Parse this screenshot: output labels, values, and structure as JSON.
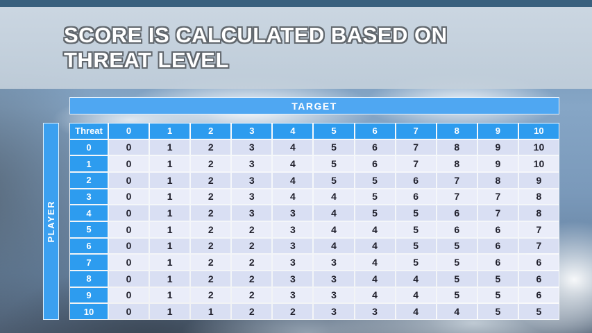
{
  "title": {
    "line1": "SCORE IS CALCULATED BASED ON",
    "line2": "THREAT LEVEL"
  },
  "chart_data": {
    "type": "table",
    "corner_label": "Threat",
    "column_axis_label": "TARGET",
    "row_axis_label": "PLAYER",
    "column_headers": [
      "0",
      "1",
      "2",
      "3",
      "4",
      "5",
      "6",
      "7",
      "8",
      "9",
      "10"
    ],
    "row_headers": [
      "0",
      "1",
      "2",
      "3",
      "4",
      "5",
      "6",
      "7",
      "8",
      "9",
      "10"
    ],
    "rows": [
      [
        0,
        1,
        2,
        3,
        4,
        5,
        6,
        7,
        8,
        9,
        10
      ],
      [
        0,
        1,
        2,
        3,
        4,
        5,
        6,
        7,
        8,
        9,
        10
      ],
      [
        0,
        1,
        2,
        3,
        4,
        5,
        5,
        6,
        7,
        8,
        9
      ],
      [
        0,
        1,
        2,
        3,
        4,
        4,
        5,
        6,
        7,
        7,
        8
      ],
      [
        0,
        1,
        2,
        3,
        3,
        4,
        5,
        5,
        6,
        7,
        8
      ],
      [
        0,
        1,
        2,
        2,
        3,
        4,
        4,
        5,
        6,
        6,
        7
      ],
      [
        0,
        1,
        2,
        2,
        3,
        4,
        4,
        5,
        5,
        6,
        7
      ],
      [
        0,
        1,
        2,
        2,
        3,
        3,
        4,
        5,
        5,
        6,
        6
      ],
      [
        0,
        1,
        2,
        2,
        3,
        3,
        4,
        4,
        5,
        5,
        6
      ],
      [
        0,
        1,
        2,
        2,
        3,
        3,
        4,
        4,
        5,
        5,
        6
      ],
      [
        0,
        1,
        1,
        2,
        2,
        3,
        3,
        4,
        4,
        5,
        5
      ]
    ]
  },
  "colors": {
    "header_blue": "#2D9CEF",
    "target_bar_blue": "#4FA7F2",
    "player_bar_blue": "#3BA0F0",
    "row_band_dark": "#D9DFF3",
    "row_band_light": "#EAEDF9",
    "title_text": "#FFFFFF",
    "title_outline": "#61676D"
  }
}
